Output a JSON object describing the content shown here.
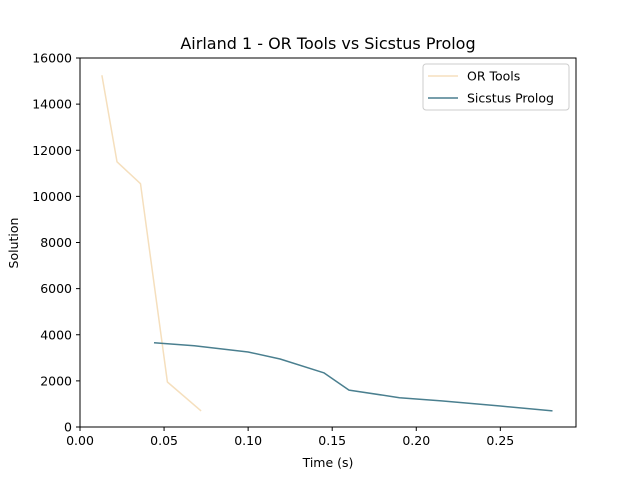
{
  "chart_data": {
    "type": "line",
    "title": "Airland 1 - OR Tools vs Sicstus Prolog",
    "xlabel": "Time (s)",
    "ylabel": "Solution",
    "xlim": [
      0.0,
      0.295
    ],
    "ylim": [
      0,
      16000
    ],
    "xticks": [
      0.0,
      0.05,
      0.1,
      0.15,
      0.2,
      0.25
    ],
    "xtick_labels": [
      "0.00",
      "0.05",
      "0.10",
      "0.15",
      "0.20",
      "0.25"
    ],
    "yticks": [
      0,
      2000,
      4000,
      6000,
      8000,
      10000,
      12000,
      14000,
      16000
    ],
    "ytick_labels": [
      "0",
      "2000",
      "4000",
      "6000",
      "8000",
      "10000",
      "12000",
      "14000",
      "16000"
    ],
    "grid": false,
    "legend_position": "top-right",
    "series": [
      {
        "name": "OR Tools",
        "color": "#f5dfbd",
        "x": [
          0.013,
          0.022,
          0.036,
          0.052,
          0.072
        ],
        "y": [
          15250,
          11500,
          10550,
          1950,
          700
        ]
      },
      {
        "name": "Sicstus Prolog",
        "color": "#4a7f8f",
        "x": [
          0.044,
          0.068,
          0.1,
          0.119,
          0.145,
          0.16,
          0.19,
          0.215,
          0.25,
          0.281
        ],
        "y": [
          3650,
          3520,
          3250,
          2950,
          2350,
          1600,
          1270,
          1130,
          910,
          700
        ]
      }
    ]
  }
}
